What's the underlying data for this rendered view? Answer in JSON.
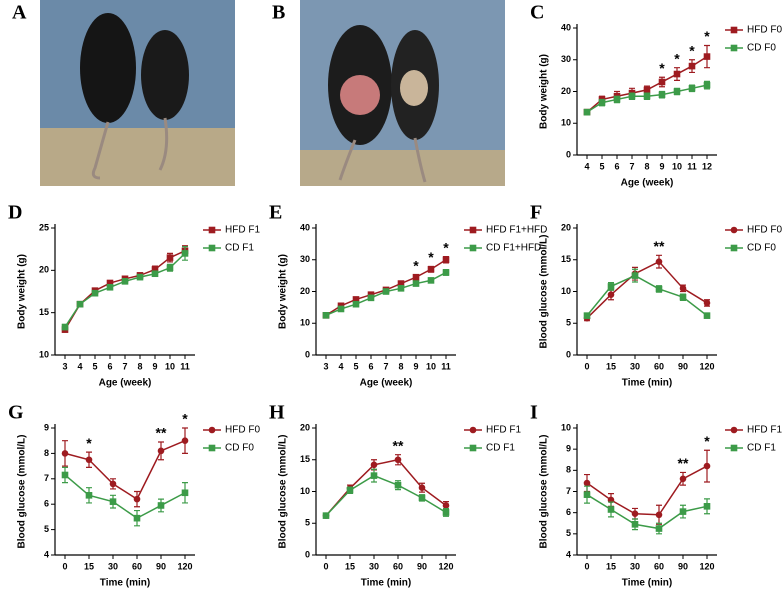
{
  "photos": [
    {
      "panel": "A"
    },
    {
      "panel": "B"
    }
  ],
  "chart_data": [
    {
      "type": "line",
      "panel": "C",
      "x_label": "Age (week)",
      "y_label": "Body weight (g)",
      "categories": [
        "4",
        "5",
        "6",
        "7",
        "8",
        "9",
        "10",
        "11",
        "12"
      ],
      "ylim": [
        0,
        40
      ],
      "yticks": [
        0,
        10,
        20,
        30,
        40
      ],
      "series": [
        {
          "name": "HFD F0",
          "color": "#9e1b20",
          "marker": "square",
          "values": [
            13.5,
            17.5,
            18.5,
            19.5,
            20.5,
            23,
            25.5,
            28,
            31
          ],
          "errors": [
            0.8,
            1,
            1.5,
            1.5,
            1.2,
            1.5,
            2,
            2,
            3.5
          ]
        },
        {
          "name": "CD F0",
          "color": "#3c9b48",
          "marker": "square",
          "values": [
            13.5,
            16.5,
            17.5,
            18.5,
            18.5,
            19,
            20,
            21,
            22
          ],
          "errors": [
            0.8,
            1,
            1,
            1,
            1,
            1,
            1,
            1,
            1.2
          ]
        }
      ],
      "annotations": [
        {
          "text": "*",
          "x": "9"
        },
        {
          "text": "*",
          "x": "10"
        },
        {
          "text": "*",
          "x": "11"
        },
        {
          "text": "*",
          "x": "12"
        }
      ]
    },
    {
      "type": "line",
      "panel": "D",
      "x_label": "Age (week)",
      "y_label": "Body weight (g)",
      "categories": [
        "3",
        "4",
        "5",
        "6",
        "7",
        "8",
        "9",
        "10",
        "11"
      ],
      "ylim": [
        10,
        25
      ],
      "yticks": [
        10,
        15,
        20,
        25
      ],
      "series": [
        {
          "name": "HFD F1",
          "color": "#9e1b20",
          "marker": "square",
          "values": [
            13,
            16,
            17.6,
            18.5,
            19,
            19.4,
            20.1,
            21.5,
            22.3
          ],
          "errors": [
            0.3,
            0.3,
            0.3,
            0.3,
            0.3,
            0.3,
            0.4,
            0.5,
            0.6
          ]
        },
        {
          "name": "CD F1",
          "color": "#3c9b48",
          "marker": "square",
          "values": [
            13.3,
            16,
            17.3,
            18,
            18.7,
            19.2,
            19.6,
            20.3,
            22
          ],
          "errors": [
            0.3,
            0.3,
            0.3,
            0.3,
            0.3,
            0.3,
            0.3,
            0.4,
            0.8
          ]
        }
      ],
      "annotations": []
    },
    {
      "type": "line",
      "panel": "E",
      "x_label": "Age (week)",
      "y_label": "Body weight (g)",
      "categories": [
        "3",
        "4",
        "5",
        "6",
        "7",
        "8",
        "9",
        "10",
        "11"
      ],
      "ylim": [
        0,
        40
      ],
      "yticks": [
        0,
        10,
        20,
        30,
        40
      ],
      "series": [
        {
          "name": "HFD F1+HFD",
          "color": "#9e1b20",
          "marker": "square",
          "values": [
            12.5,
            15.5,
            17.5,
            19,
            20.5,
            22.5,
            24.5,
            27,
            30
          ],
          "errors": [
            0.5,
            0.5,
            0.6,
            0.6,
            0.6,
            0.7,
            0.8,
            0.9,
            1
          ]
        },
        {
          "name": "CD F1+HFD",
          "color": "#3c9b48",
          "marker": "square",
          "values": [
            12.5,
            14.5,
            16,
            18,
            20,
            21,
            22.5,
            23.5,
            26
          ],
          "errors": [
            0.5,
            0.5,
            0.5,
            0.6,
            0.6,
            0.6,
            0.7,
            0.7,
            0.9
          ]
        }
      ],
      "annotations": [
        {
          "text": "*",
          "x": "9"
        },
        {
          "text": "*",
          "x": "10"
        },
        {
          "text": "*",
          "x": "11"
        }
      ]
    },
    {
      "type": "line",
      "panel": "F",
      "x_label": "Time (min)",
      "y_label": "Blood glucose (mmol/L)",
      "categories": [
        "0",
        "15",
        "30",
        "60",
        "90",
        "120"
      ],
      "ylim": [
        0,
        20
      ],
      "yticks": [
        0,
        5,
        10,
        15,
        20
      ],
      "series": [
        {
          "name": "HFD F0",
          "color": "#9e1b20",
          "marker": "circle",
          "values": [
            5.8,
            9.5,
            12.8,
            14.7,
            10.5,
            8.2
          ],
          "errors": [
            0.4,
            0.8,
            1,
            1,
            0.5,
            0.5
          ]
        },
        {
          "name": "CD F0",
          "color": "#3c9b48",
          "marker": "square",
          "values": [
            6.2,
            10.8,
            12.5,
            10.4,
            9.1,
            6.2
          ],
          "errors": [
            0.4,
            0.6,
            1,
            0.5,
            0.5,
            0.4
          ]
        }
      ],
      "annotations": [
        {
          "text": "**",
          "x": "60"
        }
      ]
    },
    {
      "type": "line",
      "panel": "G",
      "x_label": "Time (min)",
      "y_label": "Blood glucose (mmol/L)",
      "categories": [
        "0",
        "15",
        "30",
        "60",
        "90",
        "120"
      ],
      "ylim": [
        4,
        9
      ],
      "yticks": [
        4,
        5,
        6,
        7,
        8,
        9
      ],
      "series": [
        {
          "name": "HFD F0",
          "color": "#9e1b20",
          "marker": "circle",
          "values": [
            8.0,
            7.75,
            6.8,
            6.2,
            8.1,
            8.5
          ],
          "errors": [
            0.5,
            0.3,
            0.2,
            0.3,
            0.35,
            0.5
          ]
        },
        {
          "name": "CD F0",
          "color": "#3c9b48",
          "marker": "square",
          "values": [
            7.15,
            6.35,
            6.1,
            5.45,
            5.95,
            6.45
          ],
          "errors": [
            0.3,
            0.3,
            0.25,
            0.3,
            0.25,
            0.4
          ]
        }
      ],
      "annotations": [
        {
          "text": "*",
          "x": "15"
        },
        {
          "text": "**",
          "x": "90"
        },
        {
          "text": "*",
          "x": "120"
        }
      ]
    },
    {
      "type": "line",
      "panel": "H",
      "x_label": "Time (min)",
      "y_label": "Blood glucose (mmol/L)",
      "categories": [
        "0",
        "15",
        "30",
        "60",
        "90",
        "120"
      ],
      "ylim": [
        0,
        20
      ],
      "yticks": [
        0,
        5,
        10,
        15,
        20
      ],
      "series": [
        {
          "name": "HFD F1",
          "color": "#9e1b20",
          "marker": "circle",
          "values": [
            6.2,
            10.5,
            14.2,
            15.0,
            10.6,
            7.8
          ],
          "errors": [
            0.2,
            0.5,
            0.8,
            0.8,
            0.7,
            0.6
          ]
        },
        {
          "name": "CD F1",
          "color": "#3c9b48",
          "marker": "square",
          "values": [
            6.2,
            10.2,
            12.5,
            11.0,
            9.0,
            6.7
          ],
          "errors": [
            0.2,
            0.5,
            1,
            0.7,
            0.5,
            0.6
          ]
        }
      ],
      "annotations": [
        {
          "text": "**",
          "x": "60"
        }
      ]
    },
    {
      "type": "line",
      "panel": "I",
      "x_label": "Time (min)",
      "y_label": "Blood glucose (mmol/L)",
      "categories": [
        "0",
        "15",
        "30",
        "60",
        "90",
        "120"
      ],
      "ylim": [
        4,
        10
      ],
      "yticks": [
        4,
        5,
        6,
        7,
        8,
        9,
        10
      ],
      "series": [
        {
          "name": "HFD F1",
          "color": "#9e1b20",
          "marker": "circle",
          "values": [
            7.4,
            6.6,
            5.95,
            5.9,
            7.6,
            8.2
          ],
          "errors": [
            0.4,
            0.3,
            0.25,
            0.45,
            0.3,
            0.75
          ]
        },
        {
          "name": "CD F1",
          "color": "#3c9b48",
          "marker": "square",
          "values": [
            6.85,
            6.15,
            5.45,
            5.25,
            6.05,
            6.3
          ],
          "errors": [
            0.4,
            0.35,
            0.25,
            0.25,
            0.3,
            0.35
          ]
        }
      ],
      "annotations": [
        {
          "text": "**",
          "x": "90"
        },
        {
          "text": "*",
          "x": "120"
        }
      ]
    }
  ]
}
